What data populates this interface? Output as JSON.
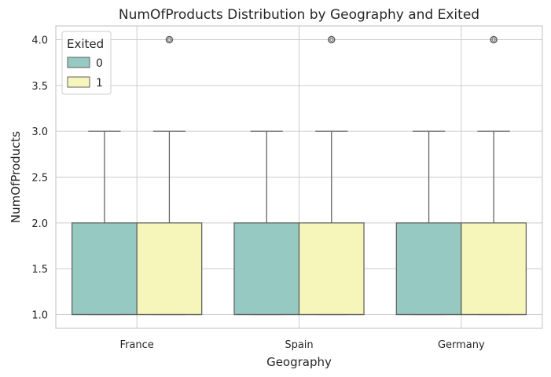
{
  "chart_data": {
    "type": "boxplot",
    "title": "NumOfProducts Distribution by Geography and Exited",
    "xlabel": "Geography",
    "ylabel": "NumOfProducts",
    "categories": [
      "France",
      "Spain",
      "Germany"
    ],
    "ylim": [
      0.85,
      4.15
    ],
    "yticks": [
      "1.0",
      "1.5",
      "2.0",
      "2.5",
      "3.0",
      "3.5",
      "4.0"
    ],
    "grid": true,
    "legend": {
      "title": "Exited",
      "placement": "top-left",
      "entries": [
        "0",
        "1"
      ]
    },
    "series": [
      {
        "name": "0",
        "color": "#96c9c2",
        "boxes": [
          {
            "category": "France",
            "min": 1,
            "q1": 1,
            "median": 1,
            "q3": 2,
            "max": 3,
            "outliers": []
          },
          {
            "category": "Spain",
            "min": 1,
            "q1": 1,
            "median": 1,
            "q3": 2,
            "max": 3,
            "outliers": []
          },
          {
            "category": "Germany",
            "min": 1,
            "q1": 1,
            "median": 1,
            "q3": 2,
            "max": 3,
            "outliers": []
          }
        ]
      },
      {
        "name": "1",
        "color": "#f6f6bb",
        "boxes": [
          {
            "category": "France",
            "min": 1,
            "q1": 1,
            "median": 1,
            "q3": 2,
            "max": 3,
            "outliers": [
              4
            ]
          },
          {
            "category": "Spain",
            "min": 1,
            "q1": 1,
            "median": 1,
            "q3": 2,
            "max": 3,
            "outliers": [
              4
            ]
          },
          {
            "category": "Germany",
            "min": 1,
            "q1": 1,
            "median": 1,
            "q3": 2,
            "max": 3,
            "outliers": [
              4
            ]
          }
        ]
      }
    ]
  }
}
